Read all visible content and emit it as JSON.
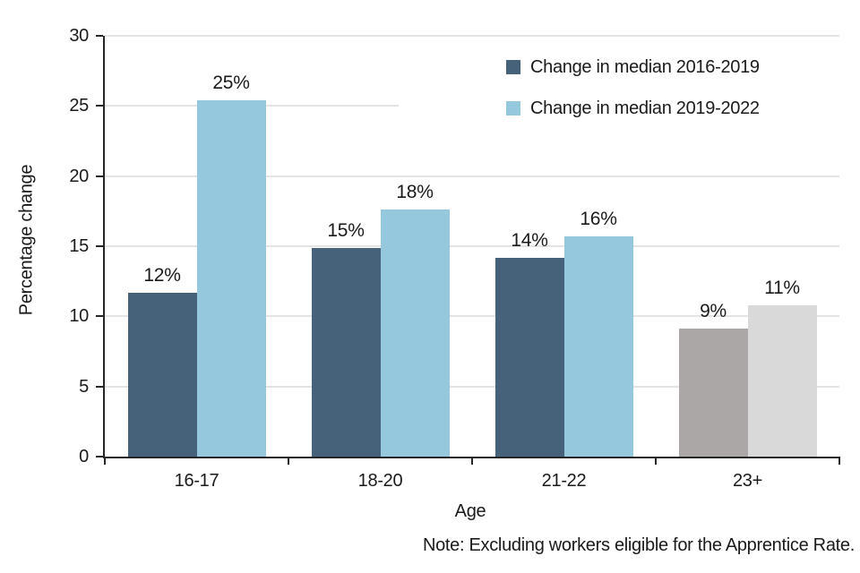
{
  "chart_data": {
    "type": "bar",
    "title": "",
    "xlabel": "Age",
    "ylabel": "Percentage change",
    "ylim": [
      0,
      30
    ],
    "yticks": [
      0,
      5,
      10,
      15,
      20,
      25,
      30
    ],
    "grid": true,
    "legend_position": "top-right",
    "categories": [
      "16-17",
      "18-20",
      "21-22",
      "23+"
    ],
    "series": [
      {
        "name": "Change in median 2016-2019",
        "values": [
          12,
          15,
          14,
          9
        ],
        "drawn_values": [
          11.7,
          14.9,
          14.2,
          9.1
        ],
        "labels": [
          "12%",
          "15%",
          "14%",
          "9%"
        ],
        "legend_color": "#46617A",
        "colors": [
          "#46617A",
          "#46617A",
          "#46617A",
          "#ABA7A7"
        ]
      },
      {
        "name": "Change in median 2019-2022",
        "values": [
          25,
          18,
          16,
          11
        ],
        "drawn_values": [
          25.4,
          17.6,
          15.7,
          10.8
        ],
        "labels": [
          "25%",
          "18%",
          "16%",
          "11%"
        ],
        "legend_color": "#95C8DC",
        "colors": [
          "#95C8DC",
          "#95C8DC",
          "#95C8DC",
          "#D9D9D9"
        ]
      }
    ],
    "note": "Note: Excluding workers eligible for the Apprentice Rate.",
    "colors": {
      "axis": "#262626",
      "gridline": "#E4E4E4",
      "text": "#1A1A1A",
      "background": "#FFFFFF"
    }
  }
}
